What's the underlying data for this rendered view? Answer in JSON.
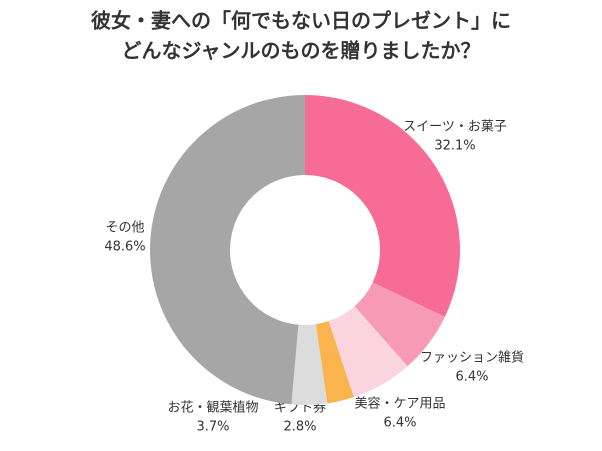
{
  "chart_data": {
    "type": "donut",
    "title": [
      "彼女・妻への「何でもない日のプレゼント」に",
      "どんなジャンルのものを贈りましたか？"
    ],
    "categories": [
      "スイーツ・お菓子",
      "ファッション雑貨",
      "美容・ケア用品",
      "ギフト券",
      "お花・観葉植物",
      "その他"
    ],
    "values": [
      32.1,
      6.4,
      6.4,
      2.8,
      3.7,
      48.6
    ],
    "value_labels": [
      "32.1%",
      "6.4%",
      "6.4%",
      "2.8%",
      "3.7%",
      "48.6%"
    ],
    "colors": [
      "#f76b97",
      "#f79ab5",
      "#fad4de",
      "#f9b44d",
      "#dcdcdc",
      "#a6a6a6"
    ]
  }
}
